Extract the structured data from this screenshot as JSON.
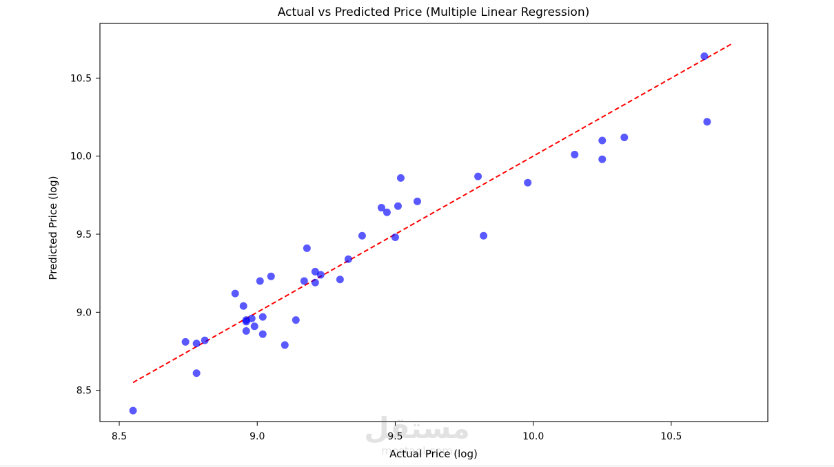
{
  "chart_data": {
    "type": "scatter",
    "title": "Actual vs Predicted Price (Multiple Linear Regression)",
    "xlabel": "Actual Price (log)",
    "ylabel": "Predicted Price (log)",
    "xlim": [
      8.43,
      10.85
    ],
    "ylim": [
      8.3,
      10.85
    ],
    "xticks": [
      8.5,
      9.0,
      9.5,
      10.0,
      10.5
    ],
    "yticks": [
      8.5,
      9.0,
      9.5,
      10.0,
      10.5
    ],
    "xtick_labels": [
      "8.5",
      "9.0",
      "9.5",
      "10.0",
      "10.5"
    ],
    "ytick_labels": [
      "8.5",
      "9.0",
      "9.5",
      "10.0",
      "10.5"
    ],
    "grid": false,
    "point_color": "#0000ff",
    "point_opacity": 0.65,
    "reference_line": {
      "x": [
        8.55,
        10.72
      ],
      "y": [
        8.55,
        10.72
      ],
      "color": "#ff0000",
      "style": "dashed"
    },
    "series": [
      {
        "points": [
          [
            8.55,
            8.37
          ],
          [
            8.74,
            8.81
          ],
          [
            8.78,
            8.8
          ],
          [
            8.78,
            8.61
          ],
          [
            8.81,
            8.82
          ],
          [
            8.92,
            9.12
          ],
          [
            8.95,
            9.04
          ],
          [
            8.96,
            8.95
          ],
          [
            8.96,
            8.94
          ],
          [
            8.96,
            8.88
          ],
          [
            8.98,
            8.96
          ],
          [
            8.99,
            8.91
          ],
          [
            9.01,
            9.2
          ],
          [
            9.02,
            8.97
          ],
          [
            9.02,
            8.86
          ],
          [
            9.05,
            9.23
          ],
          [
            9.1,
            8.79
          ],
          [
            9.14,
            8.95
          ],
          [
            9.17,
            9.2
          ],
          [
            9.18,
            9.41
          ],
          [
            9.21,
            9.26
          ],
          [
            9.21,
            9.19
          ],
          [
            9.23,
            9.24
          ],
          [
            9.3,
            9.21
          ],
          [
            9.33,
            9.34
          ],
          [
            9.38,
            9.49
          ],
          [
            9.45,
            9.67
          ],
          [
            9.47,
            9.64
          ],
          [
            9.5,
            9.48
          ],
          [
            9.51,
            9.68
          ],
          [
            9.52,
            9.86
          ],
          [
            9.58,
            9.71
          ],
          [
            9.8,
            9.87
          ],
          [
            9.82,
            9.49
          ],
          [
            9.98,
            9.83
          ],
          [
            10.15,
            10.01
          ],
          [
            10.25,
            10.1
          ],
          [
            10.25,
            9.98
          ],
          [
            10.33,
            10.12
          ],
          [
            10.62,
            10.64
          ],
          [
            10.63,
            10.22
          ]
        ]
      }
    ]
  },
  "watermark": {
    "text": "مستقل",
    "subtext": "mostaql.com"
  }
}
